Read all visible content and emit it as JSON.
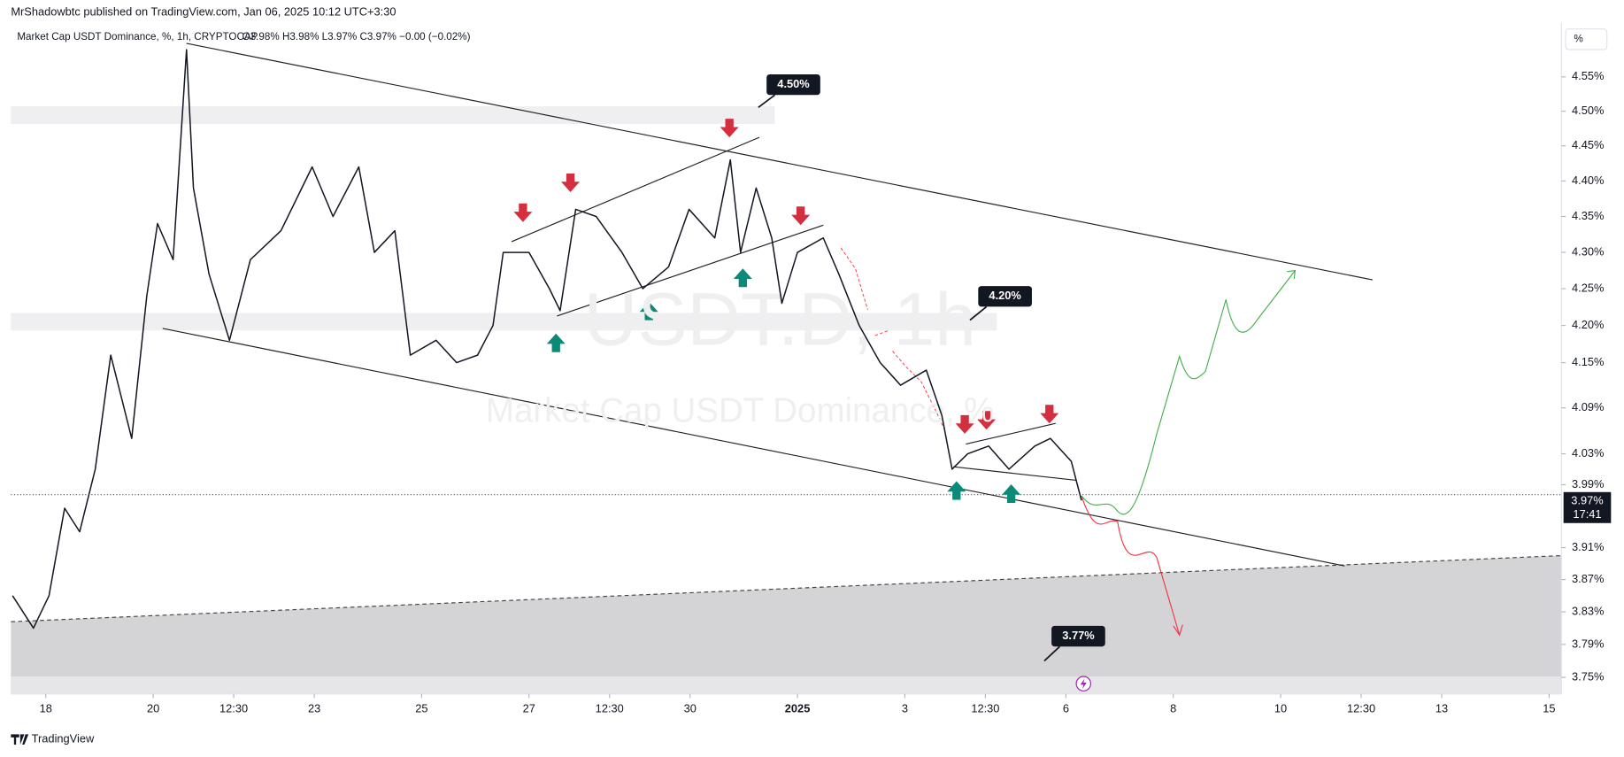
{
  "published": "MrShadowbtc published on TradingView.com, Jan 06, 2025 10:12 UTC+3:30",
  "footer": "TradingView",
  "scale_button": "%",
  "chart_data": {
    "type": "line",
    "title": "Market Cap USDT Dominance, %, 1h, CRYPTOCAP",
    "ohlc": "O3.98% H3.98% L3.97% C3.97% −0.00 (−0.02%)",
    "watermark": "USDT.D, 1h",
    "watermark_subtitle": "Market Cap USDT Dominance, %",
    "color": "#131722",
    "log_scale": true,
    "x": [
      17.38,
      17.77,
      18.06,
      18.35,
      18.63,
      18.92,
      19.21,
      19.6,
      19.88,
      20.08,
      20.37,
      20.62,
      20.75,
      21.04,
      21.42,
      21.81,
      22.38,
      22.96,
      23.35,
      23.83,
      24.12,
      24.5,
      24.79,
      25.27,
      25.65,
      26.04,
      26.33,
      26.52,
      27.0,
      27.38,
      27.58,
      27.87,
      28.25,
      28.73,
      29.12,
      29.6,
      29.98,
      30.46,
      30.75,
      30.94,
      31.23,
      31.52,
      31.71,
      32.0,
      32.48,
      32.77,
      33.15,
      33.54,
      33.92,
      34.4,
      34.69,
      34.88,
      35.17,
      35.56,
      35.94,
      36.42,
      36.71,
      37.1,
      37.29
    ],
    "values": [
      3.85,
      3.81,
      3.85,
      3.96,
      3.93,
      4.01,
      4.16,
      4.05,
      4.24,
      4.34,
      4.29,
      4.59,
      4.39,
      4.27,
      4.18,
      4.29,
      4.33,
      4.42,
      4.35,
      4.42,
      4.3,
      4.33,
      4.16,
      4.18,
      4.15,
      4.16,
      4.2,
      4.3,
      4.3,
      4.25,
      4.22,
      4.36,
      4.35,
      4.3,
      4.25,
      4.28,
      4.36,
      4.32,
      4.43,
      4.3,
      4.39,
      4.32,
      4.23,
      4.3,
      4.32,
      4.27,
      4.2,
      4.15,
      4.12,
      4.14,
      4.08,
      4.01,
      4.03,
      4.04,
      4.01,
      4.04,
      4.05,
      4.02,
      3.97
    ],
    "xlim": [
      17.35,
      46.23
    ],
    "ylim": [
      3.73,
      4.63
    ],
    "xticks": [
      18,
      20,
      {
        "value": 21.5,
        "label": "12:30"
      },
      23,
      25,
      27,
      {
        "value": 28.5,
        "label": "12:30"
      },
      30,
      {
        "value": 32,
        "label": "2025"
      },
      {
        "value": 34,
        "label": "3"
      },
      {
        "value": 35.5,
        "label": "12:30"
      },
      {
        "value": 37,
        "label": "6"
      },
      {
        "value": 39,
        "label": "8"
      },
      {
        "value": 41,
        "label": "10"
      },
      {
        "value": 42.5,
        "label": "12:30"
      },
      {
        "value": 44,
        "label": "13"
      },
      {
        "value": 46,
        "label": "15"
      }
    ],
    "yticks": [
      {
        "value": 4.55,
        "label": "4.55%"
      },
      {
        "value": 4.5,
        "label": "4.50%"
      },
      {
        "value": 4.45,
        "label": "4.45%"
      },
      {
        "value": 4.4,
        "label": "4.40%"
      },
      {
        "value": 4.35,
        "label": "4.35%"
      },
      {
        "value": 4.3,
        "label": "4.30%"
      },
      {
        "value": 4.25,
        "label": "4.25%"
      },
      {
        "value": 4.2,
        "label": "4.20%"
      },
      {
        "value": 4.15,
        "label": "4.15%"
      },
      {
        "value": 4.09,
        "label": "4.09%"
      },
      {
        "value": 4.03,
        "label": "4.03%"
      },
      {
        "value": 3.99,
        "label": "3.99%"
      },
      {
        "value": 3.91,
        "label": "3.91%"
      },
      {
        "value": 3.87,
        "label": "3.87%"
      },
      {
        "value": 3.83,
        "label": "3.83%"
      },
      {
        "value": 3.79,
        "label": "3.79%"
      },
      {
        "value": 3.75,
        "label": "3.75%"
      }
    ],
    "last_price_label": "3.97%",
    "countdown": "17:41",
    "annotations": [
      "4.50%",
      "4.20%",
      "3.77%"
    ]
  }
}
